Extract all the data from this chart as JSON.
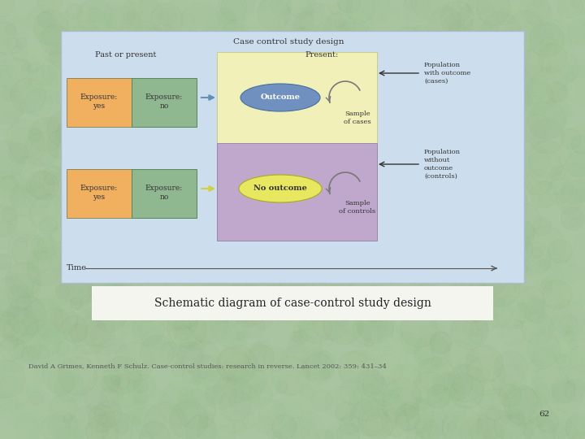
{
  "bg_color": "#a8c4a0",
  "slide_bg": "#ccdded",
  "title_text": "Case control study design",
  "past_present_label": "Past or present",
  "present_label": "Present:",
  "time_label": "Time",
  "exposure_yes_color": "#f0b060",
  "exposure_no_color": "#90b890",
  "outcome_box_color_top": "#f0f0b8",
  "outcome_box_color_bottom": "#c0a8cc",
  "outcome_ellipse_color": "#7090c0",
  "no_outcome_ellipse_color": "#e8e860",
  "case_arrow_color": "#6090b8",
  "no_outcome_arrow_color": "#d0d040",
  "caption_bg": "#f5f5f0",
  "caption_text": "Schematic diagram of case-control study design",
  "citation_text": "David A Grimes, Kenneth F Schulz. Case-control studies: research in reverse. Lancet 2002: 359: 431–34",
  "page_number": "62"
}
